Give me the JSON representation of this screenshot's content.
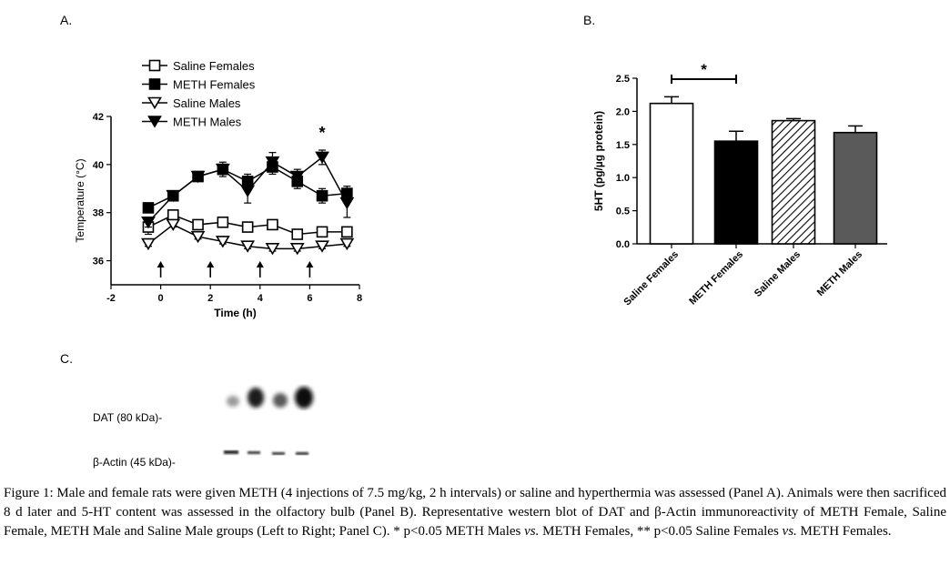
{
  "panels": {
    "a": "A.",
    "b": "B.",
    "c": "C."
  },
  "chart_data": [
    {
      "type": "line",
      "xlabel": "Time (h)",
      "ylabel": "Temperature (°C)",
      "xlim": [
        -2,
        8
      ],
      "ylim": [
        35,
        42
      ],
      "xticks": [
        "-2",
        "0",
        "2",
        "4",
        "6",
        "8"
      ],
      "yticks": [
        "36",
        "38",
        "40",
        "42"
      ],
      "injection_times": [
        0,
        2,
        4,
        6
      ],
      "annotation": "*",
      "annotation_x": 6.5,
      "legend_position": "top-left",
      "series": [
        {
          "name": "Saline Females",
          "marker": "open-square",
          "x": [
            -0.5,
            0.5,
            1.5,
            2.5,
            3.5,
            4.5,
            5.5,
            6.5,
            7.5
          ],
          "y": [
            37.4,
            37.9,
            37.5,
            37.6,
            37.4,
            37.5,
            37.1,
            37.2,
            37.2
          ],
          "err": [
            0.3,
            0.2,
            0.1,
            0.1,
            0.2,
            0.2,
            0.2,
            0.2,
            0.2
          ]
        },
        {
          "name": "METH Females",
          "marker": "filled-square",
          "x": [
            -0.5,
            0.5,
            1.5,
            2.5,
            3.5,
            4.5,
            5.5,
            6.5,
            7.5
          ],
          "y": [
            38.2,
            38.7,
            39.5,
            39.8,
            39.3,
            39.9,
            39.3,
            38.7,
            38.8
          ],
          "err": [
            0.1,
            0.2,
            0.1,
            0.2,
            0.3,
            0.3,
            0.3,
            0.3,
            0.3
          ]
        },
        {
          "name": "Saline Males",
          "marker": "open-triangle-down",
          "x": [
            -0.5,
            0.5,
            1.5,
            2.5,
            3.5,
            4.5,
            5.5,
            6.5,
            7.5
          ],
          "y": [
            36.7,
            37.5,
            37.0,
            36.8,
            36.6,
            36.5,
            36.5,
            36.6,
            36.7
          ],
          "err": [
            0.1,
            0.1,
            0.1,
            0.1,
            0.1,
            0.1,
            0.1,
            0.1,
            0.1
          ]
        },
        {
          "name": "METH Males",
          "marker": "filled-triangle-down",
          "x": [
            -0.5,
            0.5,
            1.5,
            2.5,
            3.5,
            4.5,
            5.5,
            6.5,
            7.5
          ],
          "y": [
            37.6,
            38.7,
            39.5,
            39.8,
            38.9,
            40.1,
            39.5,
            40.3,
            38.4
          ],
          "err": [
            0.2,
            0.2,
            0.1,
            0.3,
            0.5,
            0.4,
            0.3,
            0.3,
            0.6
          ]
        }
      ]
    },
    {
      "type": "bar",
      "ylabel": "5HT (pg/µg protein)",
      "ylim": [
        0,
        2.5
      ],
      "yticks": [
        "0.0",
        "0.5",
        "1.0",
        "1.5",
        "2.0",
        "2.5"
      ],
      "categories": [
        "Saline Females",
        "METH Females",
        "Saline Males",
        "METH Males"
      ],
      "values": [
        2.12,
        1.55,
        1.86,
        1.68
      ],
      "errors": [
        0.1,
        0.15,
        0.03,
        0.1
      ],
      "fills": [
        "white",
        "black",
        "hatched",
        "gray"
      ],
      "significance": {
        "from": 0,
        "to": 1,
        "label": "*"
      }
    }
  ],
  "blot": {
    "dat_label": "DAT (80 kDa)-",
    "actin_label": "β-Actin (45 kDa)-"
  },
  "caption": {
    "lead": "Figure 1:",
    "text1": " Male and female rats were given METH (4 injections of 7.5 mg/kg, 2 h intervals) or saline and hyperthermia was assessed (Panel A). Animals were then sacrificed 8 d later and 5-HT content was assessed in the olfactory bulb (Panel B). Representative western blot of DAT and β-Actin immunoreactivity of METH Female, Saline Female, METH Male and Saline Male groups (Left to Right; Panel C). * p<0.05 METH Males ",
    "vs1": "vs.",
    "text2": " METH Females, ** p<0.05 Saline Females ",
    "vs2": "vs.",
    "text3": " METH Females."
  }
}
